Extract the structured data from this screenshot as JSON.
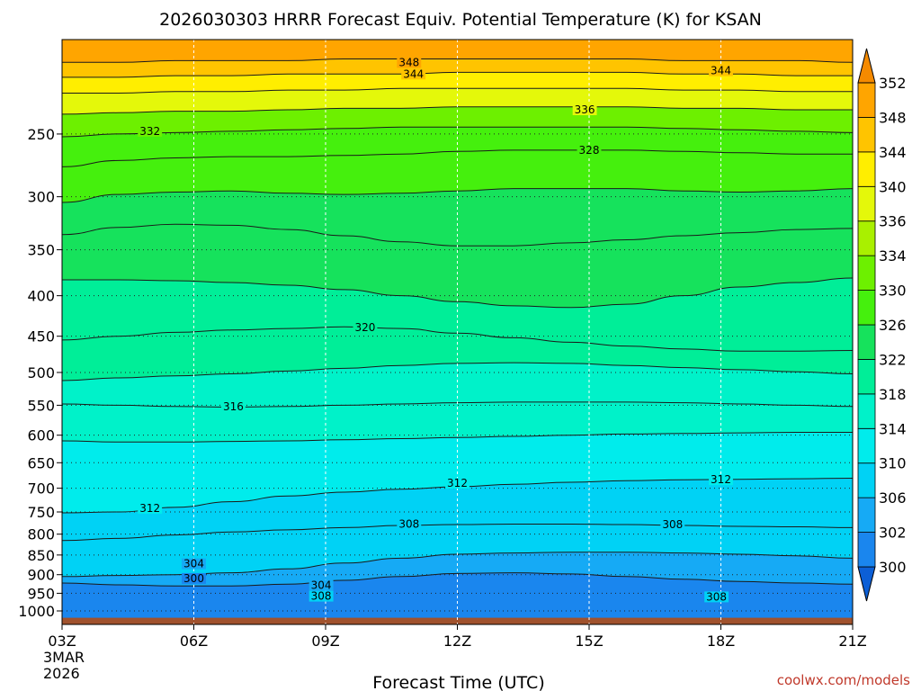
{
  "chart_data": {
    "type": "heatmap",
    "title": "2026030303 HRRR Forecast Equiv. Potential Temperature (K) for KSAN",
    "xlabel": "Forecast Time (UTC)",
    "ylabel": "",
    "credit": "coolwx.com/models",
    "x_ticks": [
      "03Z",
      "06Z",
      "09Z",
      "12Z",
      "15Z",
      "18Z",
      "21Z"
    ],
    "x_tick_hours": [
      3,
      6,
      9,
      12,
      15,
      18,
      21
    ],
    "x_date_lines": [
      "3MAR",
      "2026"
    ],
    "y_ticks": [
      250,
      300,
      350,
      400,
      450,
      500,
      550,
      600,
      650,
      700,
      750,
      800,
      850,
      900,
      950,
      1000
    ],
    "y_scale": "log",
    "y_range_hpa": [
      1040,
      190
    ],
    "y_unit": "hPa",
    "grid": "dotted",
    "colorbar": {
      "levels": [
        300,
        302,
        306,
        310,
        314,
        318,
        322,
        326,
        330,
        334,
        336,
        340,
        344,
        348,
        352
      ],
      "colors": [
        "#0c5fd6",
        "#1a86ee",
        "#16aaf5",
        "#00d2f5",
        "#00ecec",
        "#00f2c9",
        "#00ee98",
        "#16e25c",
        "#45f00d",
        "#6df000",
        "#a9f000",
        "#e4f80a",
        "#ffee00",
        "#ffc400",
        "#ffa500",
        "#f58a00"
      ]
    },
    "series": [
      {
        "value": 302,
        "p": [
          922,
          927,
          930,
          930,
          925,
          915,
          905,
          897,
          895,
          898,
          905,
          912,
          918,
          922,
          925
        ]
      },
      {
        "value": 306,
        "p": [
          905,
          902,
          900,
          895,
          885,
          870,
          858,
          848,
          845,
          843,
          843,
          845,
          848,
          852,
          858
        ]
      },
      {
        "value": 308,
        "p": [
          815,
          810,
          802,
          795,
          790,
          785,
          780,
          778,
          777,
          777,
          778,
          780,
          782,
          783,
          785
        ]
      },
      {
        "value": 312,
        "p": [
          752,
          750,
          740,
          728,
          716,
          708,
          702,
          697,
          692,
          688,
          685,
          683,
          682,
          681,
          680
        ]
      },
      {
        "value": 314,
        "p": [
          610,
          612,
          612,
          611,
          610,
          608,
          606,
          604,
          602,
          600,
          598,
          597,
          596,
          595,
          595
        ]
      },
      {
        "value": 316,
        "p": [
          548,
          550,
          552,
          553,
          552,
          550,
          548,
          546,
          545,
          545,
          545,
          546,
          548,
          550,
          552
        ]
      },
      {
        "value": 318,
        "p": [
          512,
          508,
          505,
          502,
          498,
          494,
          490,
          487,
          486,
          487,
          490,
          493,
          496,
          499,
          502
        ]
      },
      {
        "value": 320,
        "p": [
          455,
          450,
          445,
          442,
          440,
          438,
          440,
          446,
          452,
          458,
          463,
          467,
          470,
          470,
          469
        ]
      },
      {
        "value": 322,
        "p": [
          382,
          382,
          383,
          385,
          388,
          393,
          400,
          407,
          412,
          414,
          410,
          400,
          390,
          385,
          380
        ]
      },
      {
        "value": 324,
        "p": [
          335,
          328,
          325,
          326,
          330,
          336,
          342,
          346,
          346,
          343,
          340,
          336,
          333,
          330,
          329
        ]
      },
      {
        "value": 326,
        "p": [
          305,
          298,
          296,
          295,
          297,
          298,
          297,
          295,
          293,
          293,
          293,
          295,
          296,
          295,
          293
        ]
      },
      {
        "value": 328,
        "p": [
          275,
          270,
          268,
          267,
          267,
          266,
          265,
          263,
          262,
          262,
          262,
          263,
          264,
          265,
          265
        ]
      },
      {
        "value": 332,
        "p": [
          252,
          250,
          249,
          248,
          247,
          246,
          245,
          245,
          245,
          245,
          245,
          246,
          247,
          248,
          249
        ]
      },
      {
        "value": 336,
        "p": [
          236,
          235,
          234,
          234,
          233,
          232,
          232,
          231,
          231,
          231,
          231,
          232,
          232,
          233,
          233
        ]
      },
      {
        "value": 340,
        "p": [
          222,
          222,
          221,
          221,
          220,
          220,
          219,
          219,
          219,
          219,
          219,
          220,
          220,
          221,
          221
        ]
      },
      {
        "value": 344,
        "p": [
          212,
          212,
          211,
          211,
          210,
          210,
          210,
          209,
          209,
          209,
          209,
          210,
          210,
          211,
          211
        ]
      },
      {
        "value": 348,
        "p": [
          203,
          203,
          202,
          202,
          202,
          201,
          201,
          201,
          201,
          201,
          201,
          202,
          202,
          202,
          203
        ]
      }
    ],
    "labels": [
      {
        "text": "348",
        "hour": 10.9,
        "p": 203
      },
      {
        "text": "344",
        "hour": 11.0,
        "p": 210
      },
      {
        "text": "344",
        "hour": 18.0,
        "p": 208
      },
      {
        "text": "336",
        "hour": 14.9,
        "p": 233
      },
      {
        "text": "332",
        "hour": 5.0,
        "p": 248
      },
      {
        "text": "328",
        "hour": 15.0,
        "p": 262
      },
      {
        "text": "320",
        "hour": 9.9,
        "p": 439
      },
      {
        "text": "316",
        "hour": 6.9,
        "p": 552
      },
      {
        "text": "312",
        "hour": 12.0,
        "p": 690
      },
      {
        "text": "312",
        "hour": 18.0,
        "p": 683
      },
      {
        "text": "312",
        "hour": 5.0,
        "p": 742
      },
      {
        "text": "308",
        "hour": 10.9,
        "p": 777
      },
      {
        "text": "308",
        "hour": 16.9,
        "p": 778
      },
      {
        "text": "304",
        "hour": 6.0,
        "p": 872
      },
      {
        "text": "300",
        "hour": 6.0,
        "p": 910
      },
      {
        "text": "304",
        "hour": 8.9,
        "p": 928
      },
      {
        "text": "308",
        "hour": 8.9,
        "p": 958
      },
      {
        "text": "308",
        "hour": 17.9,
        "p": 960
      }
    ]
  }
}
